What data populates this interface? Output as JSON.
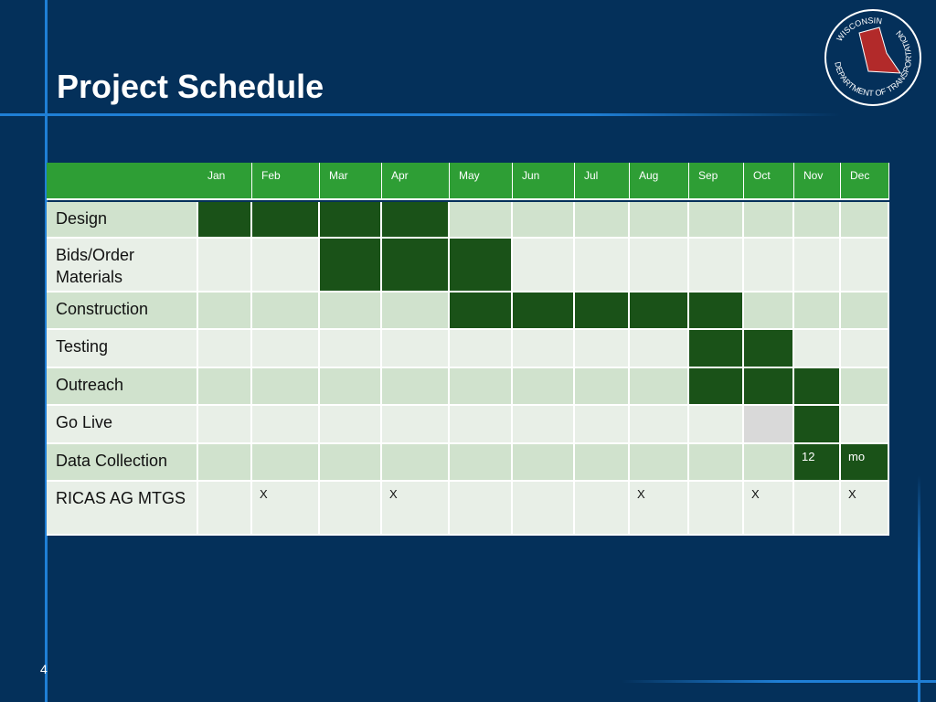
{
  "header": {
    "title": "Project Schedule",
    "logo_top": "WISCONSIN",
    "logo_ring": "DEPARTMENT OF TRANSPORTATION"
  },
  "table": {
    "months": [
      "Jan",
      "Feb",
      "Mar",
      "Apr",
      "May",
      "Jun",
      "Jul",
      "Aug",
      "Sep",
      "Oct",
      "Nov",
      "Dec"
    ],
    "header_color": "#2e9e35",
    "rows": [
      {
        "label": "Design",
        "cells": [
          null,
          null,
          null,
          null,
          null,
          null,
          null,
          null,
          null,
          null,
          null,
          null
        ],
        "colors": [
          "#1a5218",
          "#1a5218",
          "#1a5218",
          "#1a5218",
          "#d0e2cd",
          "#d0e2cd",
          "#d0e2cd",
          "#d0e2cd",
          "#d0e2cd",
          "#d0e2cd",
          "#d0e2cd",
          "#d0e2cd"
        ]
      },
      {
        "label": "Bids/Order Materials",
        "cells": [
          null,
          null,
          null,
          null,
          null,
          null,
          null,
          null,
          null,
          null,
          null,
          null
        ],
        "colors": [
          "#e8efe7",
          "#e8efe7",
          "#1a5218",
          "#1a5218",
          "#1a5218",
          "#e8efe7",
          "#e8efe7",
          "#e8efe7",
          "#e8efe7",
          "#e8efe7",
          "#e8efe7",
          "#e8efe7"
        ]
      },
      {
        "label": "Construction",
        "cells": [
          null,
          null,
          null,
          null,
          null,
          null,
          null,
          null,
          null,
          null,
          null,
          null
        ],
        "colors": [
          "#d0e2cd",
          "#d0e2cd",
          "#d0e2cd",
          "#d0e2cd",
          "#1a5218",
          "#1a5218",
          "#1a5218",
          "#1a5218",
          "#1a5218",
          "#d0e2cd",
          "#d0e2cd",
          "#d0e2cd"
        ]
      },
      {
        "label": "Testing",
        "cells": [
          null,
          null,
          null,
          null,
          null,
          null,
          null,
          null,
          null,
          null,
          null,
          null
        ],
        "colors": [
          "#e8efe7",
          "#e8efe7",
          "#e8efe7",
          "#e8efe7",
          "#e8efe7",
          "#e8efe7",
          "#e8efe7",
          "#e8efe7",
          "#1a5218",
          "#1a5218",
          "#e8efe7",
          "#e8efe7"
        ]
      },
      {
        "label": "Outreach",
        "cells": [
          null,
          null,
          null,
          null,
          null,
          null,
          null,
          null,
          null,
          null,
          null,
          null
        ],
        "colors": [
          "#d0e2cd",
          "#d0e2cd",
          "#d0e2cd",
          "#d0e2cd",
          "#d0e2cd",
          "#d0e2cd",
          "#d0e2cd",
          "#d0e2cd",
          "#1a5218",
          "#1a5218",
          "#1a5218",
          "#d0e2cd"
        ]
      },
      {
        "label": "Go Live",
        "cells": [
          null,
          null,
          null,
          null,
          null,
          null,
          null,
          null,
          null,
          null,
          null,
          null
        ],
        "colors": [
          "#e8efe7",
          "#e8efe7",
          "#e8efe7",
          "#e8efe7",
          "#e8efe7",
          "#e8efe7",
          "#e8efe7",
          "#e8efe7",
          "#e8efe7",
          "#d9d9d9",
          "#1a5218",
          "#e8efe7"
        ]
      },
      {
        "label": "Data Collection",
        "cells": [
          null,
          null,
          null,
          null,
          null,
          null,
          null,
          null,
          null,
          null,
          "12",
          "mo"
        ],
        "colors": [
          "#d0e2cd",
          "#d0e2cd",
          "#d0e2cd",
          "#d0e2cd",
          "#d0e2cd",
          "#d0e2cd",
          "#d0e2cd",
          "#d0e2cd",
          "#d0e2cd",
          "#d0e2cd",
          "#1a5218",
          "#1a5218"
        ]
      },
      {
        "label": "RICAS AG MTGS",
        "cells": [
          null,
          "X",
          null,
          "X",
          null,
          null,
          null,
          "X",
          null,
          "X",
          null,
          "X"
        ],
        "colors": [
          "#e8efe7",
          "#e8efe7",
          "#e8efe7",
          "#e8efe7",
          "#e8efe7",
          "#e8efe7",
          "#e8efe7",
          "#e8efe7",
          "#e8efe7",
          "#e8efe7",
          "#e8efe7",
          "#e8efe7"
        ]
      }
    ]
  },
  "footer": {
    "page_number": "4"
  }
}
